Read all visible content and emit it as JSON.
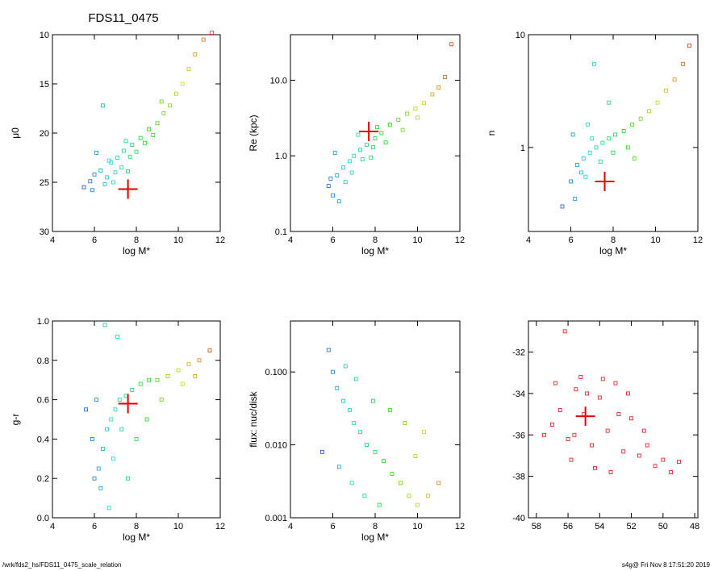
{
  "figure": {
    "title": "FDS11_0475",
    "footer_left": "/wrk/fds2_hs/FDS11_0475_scale_relation",
    "footer_right": "s4g@  Fri Nov  8 17:51:20 2019"
  },
  "chart_data": [
    {
      "type": "scatter",
      "name": "mu0",
      "xlabel": "log M*",
      "ylabel": "μ0",
      "xlim": [
        4,
        12
      ],
      "ylim": [
        30,
        10
      ],
      "yscale": "linear",
      "xticks": [
        "4",
        "6",
        "8",
        "10",
        "12"
      ],
      "yticks": [
        "10",
        "15",
        "20",
        "25",
        "30"
      ],
      "galaxy": {
        "x": 7.6,
        "y": 25.7
      },
      "points": [
        [
          6.0,
          24.2
        ],
        [
          6.3,
          23.8
        ],
        [
          6.6,
          24.5
        ],
        [
          6.8,
          23.0
        ],
        [
          7.1,
          22.5
        ],
        [
          7.4,
          21.8
        ],
        [
          7.8,
          21.2
        ],
        [
          8.2,
          20.5
        ],
        [
          8.6,
          19.6
        ],
        [
          9.0,
          19.0
        ],
        [
          9.3,
          18.0
        ],
        [
          9.6,
          17.2
        ],
        [
          9.9,
          16.0
        ],
        [
          10.2,
          15.0
        ],
        [
          10.5,
          13.5
        ],
        [
          10.8,
          12.0
        ],
        [
          11.2,
          10.5
        ],
        [
          11.6,
          9.8
        ],
        [
          5.5,
          25.5
        ],
        [
          5.8,
          24.9
        ],
        [
          6.5,
          25.2
        ],
        [
          7.0,
          24.0
        ],
        [
          7.3,
          23.5
        ],
        [
          7.7,
          22.4
        ],
        [
          8.0,
          21.9
        ],
        [
          8.4,
          21.0
        ],
        [
          6.1,
          22.0
        ],
        [
          6.7,
          22.8
        ],
        [
          7.5,
          20.8
        ],
        [
          9.2,
          16.8
        ],
        [
          6.4,
          17.2
        ],
        [
          5.9,
          25.8
        ],
        [
          6.9,
          25.0
        ],
        [
          7.6,
          23.9
        ],
        [
          8.8,
          20.2
        ]
      ]
    },
    {
      "type": "scatter",
      "name": "re",
      "xlabel": "log M*",
      "ylabel": "Re (kpc)",
      "xlim": [
        4,
        12
      ],
      "ylim": [
        0.1,
        40
      ],
      "yscale": "log",
      "xticks": [
        "4",
        "6",
        "8",
        "10",
        "12"
      ],
      "yticks": [
        "0.1",
        "1.0",
        "10.0"
      ],
      "galaxy": {
        "x": 7.7,
        "y": 2.1
      },
      "points": [
        [
          5.8,
          0.4
        ],
        [
          6.0,
          0.3
        ],
        [
          6.2,
          0.55
        ],
        [
          6.5,
          0.7
        ],
        [
          6.8,
          0.85
        ],
        [
          7.0,
          1.0
        ],
        [
          7.3,
          1.2
        ],
        [
          7.6,
          1.4
        ],
        [
          8.0,
          1.7
        ],
        [
          8.3,
          2.0
        ],
        [
          8.7,
          2.6
        ],
        [
          9.1,
          3.0
        ],
        [
          9.5,
          3.6
        ],
        [
          9.9,
          4.2
        ],
        [
          10.3,
          5.0
        ],
        [
          10.7,
          6.5
        ],
        [
          11.0,
          8.0
        ],
        [
          11.3,
          11.0
        ],
        [
          11.6,
          30.0
        ],
        [
          6.3,
          0.25
        ],
        [
          6.9,
          0.6
        ],
        [
          7.4,
          0.9
        ],
        [
          7.9,
          1.3
        ],
        [
          8.5,
          1.5
        ],
        [
          9.3,
          2.2
        ],
        [
          10.0,
          3.2
        ],
        [
          6.1,
          1.1
        ],
        [
          7.2,
          1.9
        ],
        [
          8.1,
          2.4
        ],
        [
          5.9,
          0.5
        ],
        [
          6.6,
          0.45
        ],
        [
          7.8,
          0.95
        ]
      ]
    },
    {
      "type": "scatter",
      "name": "sersic_n",
      "xlabel": "log M*",
      "ylabel": "n",
      "xlim": [
        4,
        12
      ],
      "ylim": [
        0.18,
        10
      ],
      "yscale": "log",
      "xticks": [
        "4",
        "6",
        "8",
        "10",
        "12"
      ],
      "yticks": [
        "1",
        "10"
      ],
      "galaxy": {
        "x": 7.6,
        "y": 0.5
      },
      "points": [
        [
          5.6,
          0.3
        ],
        [
          6.0,
          0.5
        ],
        [
          6.3,
          0.7
        ],
        [
          6.6,
          0.8
        ],
        [
          6.9,
          0.9
        ],
        [
          7.2,
          1.0
        ],
        [
          7.5,
          1.1
        ],
        [
          7.8,
          1.2
        ],
        [
          8.1,
          1.3
        ],
        [
          8.5,
          1.4
        ],
        [
          8.9,
          1.6
        ],
        [
          9.3,
          1.8
        ],
        [
          9.7,
          2.1
        ],
        [
          10.1,
          2.5
        ],
        [
          10.5,
          3.2
        ],
        [
          10.9,
          4.0
        ],
        [
          11.3,
          5.5
        ],
        [
          11.6,
          8.0
        ],
        [
          6.2,
          0.35
        ],
        [
          6.7,
          0.55
        ],
        [
          7.4,
          0.75
        ],
        [
          8.0,
          0.9
        ],
        [
          8.7,
          1.0
        ],
        [
          6.1,
          1.3
        ],
        [
          6.8,
          1.6
        ],
        [
          7.1,
          5.5
        ],
        [
          7.8,
          2.5
        ],
        [
          6.5,
          0.6
        ],
        [
          7.0,
          1.2
        ],
        [
          9.0,
          0.8
        ]
      ]
    },
    {
      "type": "scatter",
      "name": "color",
      "xlabel": "log M*",
      "ylabel": "g-r",
      "xlim": [
        4,
        12
      ],
      "ylim": [
        0.0,
        1.0
      ],
      "yscale": "linear",
      "xticks": [
        "4",
        "6",
        "8",
        "10",
        "12"
      ],
      "yticks": [
        "0.0",
        "0.2",
        "0.4",
        "0.6",
        "0.8",
        "1.0"
      ],
      "galaxy": {
        "x": 7.6,
        "y": 0.58
      },
      "points": [
        [
          6.0,
          0.2
        ],
        [
          6.2,
          0.25
        ],
        [
          6.4,
          0.35
        ],
        [
          6.6,
          0.45
        ],
        [
          6.8,
          0.5
        ],
        [
          7.0,
          0.55
        ],
        [
          7.2,
          0.6
        ],
        [
          7.5,
          0.62
        ],
        [
          7.8,
          0.65
        ],
        [
          8.2,
          0.68
        ],
        [
          8.6,
          0.7
        ],
        [
          9.0,
          0.7
        ],
        [
          9.5,
          0.72
        ],
        [
          10.0,
          0.75
        ],
        [
          10.5,
          0.78
        ],
        [
          11.0,
          0.8
        ],
        [
          11.5,
          0.85
        ],
        [
          6.5,
          0.98
        ],
        [
          7.1,
          0.92
        ],
        [
          5.9,
          0.4
        ],
        [
          6.3,
          0.15
        ],
        [
          6.9,
          0.3
        ],
        [
          7.3,
          0.45
        ],
        [
          8.0,
          0.4
        ],
        [
          8.5,
          0.5
        ],
        [
          9.2,
          0.6
        ],
        [
          6.7,
          0.05
        ],
        [
          7.6,
          0.2
        ],
        [
          5.6,
          0.55
        ],
        [
          6.1,
          0.6
        ],
        [
          10.2,
          0.68
        ],
        [
          10.8,
          0.72
        ]
      ]
    },
    {
      "type": "scatter",
      "name": "nuc_ratio",
      "xlabel": "log M*",
      "ylabel": "flux: nuc/disk",
      "xlim": [
        4,
        12
      ],
      "ylim": [
        0.001,
        0.5
      ],
      "yscale": "log",
      "xticks": [
        "4",
        "6",
        "8",
        "10",
        "12"
      ],
      "yticks": [
        "0.001",
        "0.010",
        "0.100"
      ],
      "points": [
        [
          5.8,
          0.2
        ],
        [
          6.0,
          0.1
        ],
        [
          6.2,
          0.06
        ],
        [
          6.5,
          0.04
        ],
        [
          6.8,
          0.03
        ],
        [
          7.0,
          0.02
        ],
        [
          7.3,
          0.015
        ],
        [
          7.6,
          0.01
        ],
        [
          8.0,
          0.008
        ],
        [
          8.4,
          0.006
        ],
        [
          8.8,
          0.004
        ],
        [
          9.2,
          0.003
        ],
        [
          9.6,
          0.002
        ],
        [
          10.0,
          0.0015
        ],
        [
          10.5,
          0.002
        ],
        [
          11.0,
          0.003
        ],
        [
          6.3,
          0.005
        ],
        [
          6.9,
          0.003
        ],
        [
          7.5,
          0.002
        ],
        [
          8.2,
          0.0015
        ],
        [
          5.5,
          0.008
        ],
        [
          7.1,
          0.08
        ],
        [
          8.7,
          0.03
        ],
        [
          9.4,
          0.02
        ],
        [
          10.3,
          0.015
        ],
        [
          6.6,
          0.12
        ],
        [
          7.9,
          0.04
        ],
        [
          9.9,
          0.007
        ]
      ]
    },
    {
      "type": "scatter",
      "name": "position",
      "xlabel": "",
      "ylabel": "",
      "xlim": [
        58.5,
        47.8
      ],
      "ylim": [
        -40.0,
        -30.5
      ],
      "yscale": "linear",
      "xticks": [
        "58",
        "56",
        "54",
        "52",
        "50",
        "48"
      ],
      "yticks": [
        "-32",
        "-34",
        "-36",
        "-38",
        "-40"
      ],
      "galaxy": {
        "x": 54.9,
        "y": -35.1
      },
      "points": [
        [
          57.0,
          -35.5
        ],
        [
          56.5,
          -34.8
        ],
        [
          56.0,
          -36.2
        ],
        [
          55.5,
          -33.8
        ],
        [
          55.0,
          -35.0
        ],
        [
          54.5,
          -36.5
        ],
        [
          54.0,
          -34.2
        ],
        [
          53.5,
          -35.8
        ],
        [
          53.0,
          -33.5
        ],
        [
          52.5,
          -36.8
        ],
        [
          52.0,
          -35.2
        ],
        [
          51.5,
          -37.0
        ],
        [
          51.0,
          -36.5
        ],
        [
          50.5,
          -37.5
        ],
        [
          50.0,
          -37.2
        ],
        [
          49.5,
          -37.8
        ],
        [
          49.0,
          -37.3
        ],
        [
          55.8,
          -37.2
        ],
        [
          54.3,
          -37.6
        ],
        [
          53.3,
          -37.8
        ],
        [
          56.8,
          -33.5
        ],
        [
          55.2,
          -33.2
        ],
        [
          53.8,
          -33.3
        ],
        [
          52.2,
          -34.0
        ],
        [
          56.2,
          -31.0
        ],
        [
          57.5,
          -36.0
        ],
        [
          52.8,
          -35.0
        ],
        [
          51.2,
          -35.8
        ],
        [
          55.6,
          -36.0
        ],
        [
          54.8,
          -34.0
        ]
      ]
    }
  ]
}
